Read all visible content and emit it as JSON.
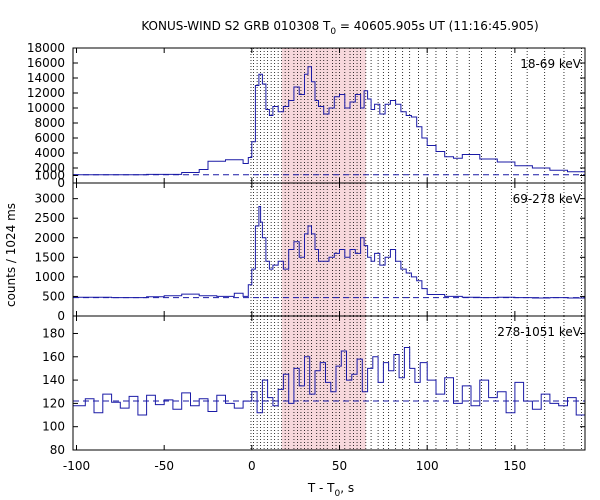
{
  "chart_data": {
    "type": "line",
    "title_main": "KONUS-WIND S2 GRB 010308 T",
    "title_sub": "0",
    "title_rest": " = 40605.905s UT (11:16:45.905)",
    "xlabel_main": "T - T",
    "xlabel_sub": "0",
    "xlabel_rest": ", s",
    "ylabel": "counts / 1024 ms",
    "xlim": [
      -102,
      190
    ],
    "x_ticks": [
      -100,
      -50,
      0,
      50,
      100,
      150
    ],
    "shaded_region": [
      17,
      65
    ],
    "shade_color": "#f7d8dc",
    "line_color": "#1a1aa6",
    "vlines": [
      -0.5,
      1,
      3,
      5,
      7,
      9,
      11,
      13,
      15,
      17,
      19,
      21,
      24,
      26,
      28,
      30,
      32,
      34,
      37,
      39,
      41,
      43,
      46,
      48,
      50,
      53,
      56,
      58,
      60,
      62,
      65,
      68,
      72,
      75,
      78,
      82,
      86,
      90,
      95,
      100,
      105,
      111,
      117,
      124,
      131,
      139,
      148,
      157,
      167,
      178,
      188
    ],
    "panels": [
      {
        "label": "18-69 keV",
        "ylim": [
          0,
          18000
        ],
        "y_ticks": [
          0,
          1000,
          2000,
          4000,
          6000,
          8000,
          10000,
          12000,
          14000,
          16000,
          18000
        ],
        "background": 1100,
        "x": [
          -102,
          -60,
          -40,
          -30,
          -25,
          -15,
          -5,
          -2,
          0,
          2,
          4,
          6,
          8,
          10,
          12,
          15,
          18,
          21,
          24,
          27,
          30,
          32,
          34,
          36,
          38,
          41,
          44,
          47,
          50,
          53,
          56,
          59,
          62,
          64,
          66,
          68,
          70,
          73,
          76,
          79,
          82,
          85,
          88,
          91,
          94,
          97,
          100,
          105,
          110,
          115,
          120,
          130,
          140,
          150,
          160,
          170,
          180,
          190
        ],
        "y": [
          1100,
          1150,
          1400,
          1800,
          2900,
          3100,
          2600,
          3400,
          5500,
          13000,
          14500,
          13200,
          9800,
          9000,
          10200,
          9500,
          10200,
          11000,
          12800,
          11800,
          14500,
          15500,
          13500,
          11000,
          10200,
          9200,
          10000,
          11500,
          11800,
          10000,
          10800,
          11800,
          10000,
          12300,
          11200,
          9800,
          10500,
          9200,
          10500,
          11000,
          10500,
          9500,
          9000,
          8800,
          7500,
          6000,
          5000,
          4200,
          3500,
          3300,
          3800,
          3200,
          2800,
          2300,
          2000,
          1700,
          1500,
          1400
        ]
      },
      {
        "label": "69-278 keV",
        "ylim": [
          0,
          3400
        ],
        "y_ticks": [
          0,
          500,
          1000,
          1500,
          2000,
          2500,
          3000
        ],
        "background": 470,
        "x": [
          -102,
          -80,
          -60,
          -50,
          -40,
          -30,
          -20,
          -10,
          -5,
          -2,
          0,
          2,
          4,
          5,
          6,
          8,
          10,
          12,
          15,
          18,
          21,
          24,
          27,
          30,
          32,
          34,
          36,
          38,
          41,
          44,
          47,
          50,
          53,
          56,
          59,
          62,
          64,
          66,
          68,
          70,
          73,
          76,
          79,
          82,
          85,
          88,
          91,
          94,
          97,
          100,
          110,
          120,
          130,
          140,
          150,
          160,
          170,
          180,
          190
        ],
        "y": [
          480,
          470,
          490,
          520,
          560,
          520,
          500,
          580,
          500,
          800,
          1200,
          2300,
          2800,
          2400,
          2000,
          1400,
          1200,
          1300,
          1400,
          1200,
          1700,
          1900,
          1500,
          2100,
          2300,
          2100,
          1700,
          1400,
          1400,
          1500,
          1600,
          1700,
          1500,
          1700,
          1600,
          2000,
          1800,
          1500,
          1400,
          1600,
          1300,
          1500,
          1700,
          1400,
          1200,
          1100,
          1000,
          900,
          700,
          550,
          500,
          480,
          470,
          480,
          470,
          460,
          470,
          460,
          480
        ]
      },
      {
        "label": "278-1051 keV",
        "ylim": [
          80,
          195
        ],
        "y_ticks": [
          80,
          100,
          120,
          140,
          160,
          180
        ],
        "background": 122,
        "x": [
          -102,
          -95,
          -90,
          -85,
          -80,
          -75,
          -70,
          -65,
          -60,
          -55,
          -50,
          -45,
          -40,
          -35,
          -30,
          -25,
          -20,
          -15,
          -10,
          -5,
          0,
          3,
          6,
          9,
          12,
          15,
          18,
          21,
          24,
          27,
          30,
          33,
          36,
          39,
          42,
          45,
          48,
          51,
          54,
          57,
          60,
          63,
          66,
          69,
          72,
          75,
          78,
          81,
          84,
          87,
          90,
          93,
          96,
          100,
          105,
          110,
          115,
          120,
          125,
          130,
          135,
          140,
          145,
          150,
          155,
          160,
          165,
          170,
          175,
          180,
          185,
          190
        ],
        "y": [
          118,
          124,
          112,
          128,
          121,
          116,
          126,
          110,
          127,
          119,
          123,
          115,
          129,
          118,
          124,
          113,
          127,
          120,
          116,
          122,
          130,
          112,
          140,
          125,
          118,
          132,
          145,
          120,
          150,
          135,
          160,
          128,
          148,
          155,
          138,
          130,
          152,
          165,
          140,
          145,
          158,
          130,
          150,
          160,
          138,
          155,
          148,
          162,
          142,
          168,
          150,
          138,
          155,
          140,
          128,
          142,
          120,
          135,
          118,
          140,
          125,
          130,
          112,
          138,
          122,
          115,
          128,
          120,
          118,
          125,
          110,
          130
        ]
      }
    ]
  }
}
